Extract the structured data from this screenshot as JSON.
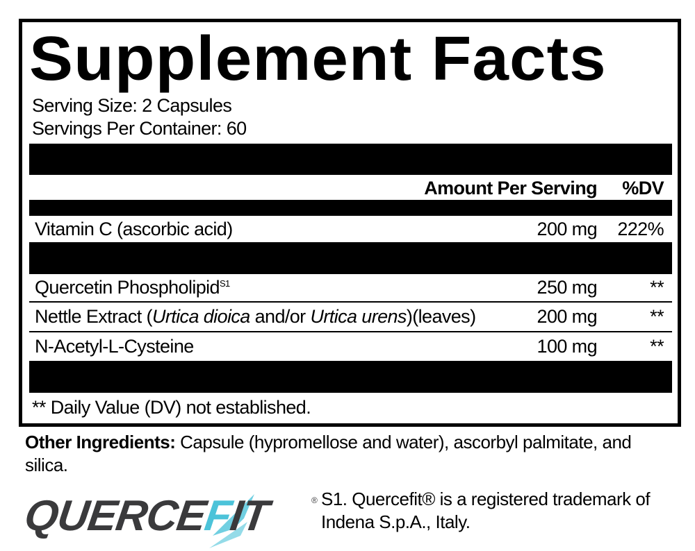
{
  "label": {
    "title": "Supplement Facts",
    "serving_size": "Serving Size: 2 Capsules",
    "servings_per_container": "Servings Per Container: 60",
    "header": {
      "amount": "Amount Per Serving",
      "dv": "%DV"
    },
    "rows": [
      {
        "name": "Vitamin C (ascorbic acid)",
        "amount": "200 mg",
        "dv": "222%"
      },
      {
        "name": "Quercetin Phospholipid",
        "sup": "S1",
        "amount": "250 mg",
        "dv": "**"
      },
      {
        "name_pre": "Nettle Extract (",
        "italic1": "Urtica dioica",
        "mid": " and/or ",
        "italic2": "Urtica urens",
        "name_post": ")(leaves)",
        "amount": "200 mg",
        "dv": "**"
      },
      {
        "name": "N-Acetyl-L-Cysteine",
        "amount": "100 mg",
        "dv": "**"
      }
    ],
    "footnote": "** Daily Value (DV) not established."
  },
  "other_ingredients": {
    "label": "Other Ingredients:",
    "text": " Capsule (hypromellose and water), ascorbyl palmitate, and",
    "text2": "silica."
  },
  "logo": {
    "text_dark": "QUERCE",
    "text_accent": "F",
    "text_dark2": "IT",
    "reg": "®",
    "accent_color": "#4cc3d9",
    "dark_color": "#3a3a3c"
  },
  "trademark": {
    "line1": "S1. Quercefit® is a registered trademark of",
    "line2": "Indena S.p.A., Italy."
  }
}
